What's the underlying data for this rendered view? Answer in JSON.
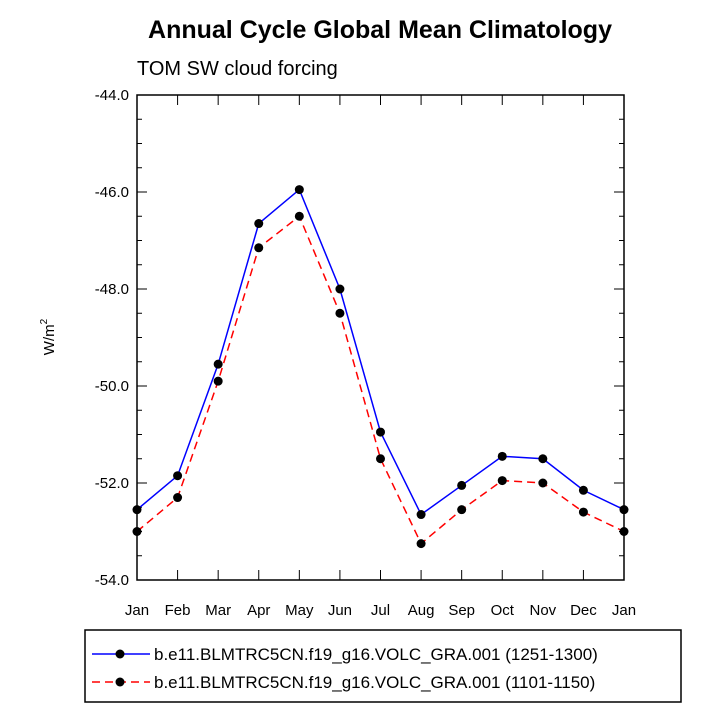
{
  "chart_data": {
    "type": "line",
    "title": "Annual Cycle Global Mean Climatology",
    "subtitle": "TOM SW cloud forcing",
    "ylabel": "W/m",
    "ylabel_superscript": "2",
    "ylim": [
      -54.0,
      -44.0
    ],
    "yticks": [
      "-44.0",
      "-46.0",
      "-48.0",
      "-50.0",
      "-52.0",
      "-54.0"
    ],
    "ytick_values": [
      -44.0,
      -46.0,
      -48.0,
      -50.0,
      -52.0,
      -54.0
    ],
    "categories": [
      "Jan",
      "Feb",
      "Mar",
      "Apr",
      "May",
      "Jun",
      "Jul",
      "Aug",
      "Sep",
      "Oct",
      "Nov",
      "Dec",
      "Jan"
    ],
    "series": [
      {
        "name": "b.e11.BLMTRC5CN.f19_g16.VOLC_GRA.001 (1251-1300)",
        "color": "#0000ff",
        "dash": "solid",
        "values": [
          -52.55,
          -51.85,
          -49.55,
          -46.65,
          -45.95,
          -48.0,
          -50.95,
          -52.65,
          -52.05,
          -51.45,
          -51.5,
          -52.15,
          -52.55
        ]
      },
      {
        "name": "b.e11.BLMTRC5CN.f19_g16.VOLC_GRA.001 (1101-1150)",
        "color": "#ff0000",
        "dash": "dashed",
        "values": [
          -53.0,
          -52.3,
          -49.9,
          -47.15,
          -46.5,
          -48.5,
          -51.5,
          -53.25,
          -52.55,
          -51.95,
          -52.0,
          -52.6,
          -53.0
        ]
      }
    ],
    "legend_position": "bottom"
  }
}
